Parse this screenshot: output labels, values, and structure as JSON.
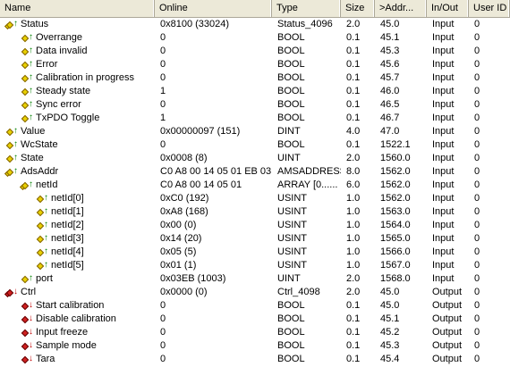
{
  "columns": [
    "Name",
    "Online",
    "Type",
    "Size",
    ">Addr...",
    "In/Out",
    "User ID"
  ],
  "rows": [
    {
      "level": 0,
      "kind": "in",
      "group": true,
      "name": "Status",
      "online": "0x8100 (33024)",
      "type": "Status_4096",
      "size": "2.0",
      "addr": "45.0",
      "io": "Input",
      "uid": "0"
    },
    {
      "level": 1,
      "kind": "in",
      "name": "Overrange",
      "online": "0",
      "type": "BOOL",
      "size": "0.1",
      "addr": "45.1",
      "io": "Input",
      "uid": "0"
    },
    {
      "level": 1,
      "kind": "in",
      "name": "Data invalid",
      "online": "0",
      "type": "BOOL",
      "size": "0.1",
      "addr": "45.3",
      "io": "Input",
      "uid": "0"
    },
    {
      "level": 1,
      "kind": "in",
      "name": "Error",
      "online": "0",
      "type": "BOOL",
      "size": "0.1",
      "addr": "45.6",
      "io": "Input",
      "uid": "0"
    },
    {
      "level": 1,
      "kind": "in",
      "name": "Calibration in progress",
      "online": "0",
      "type": "BOOL",
      "size": "0.1",
      "addr": "45.7",
      "io": "Input",
      "uid": "0"
    },
    {
      "level": 1,
      "kind": "in",
      "name": "Steady state",
      "online": "1",
      "type": "BOOL",
      "size": "0.1",
      "addr": "46.0",
      "io": "Input",
      "uid": "0"
    },
    {
      "level": 1,
      "kind": "in",
      "name": "Sync error",
      "online": "0",
      "type": "BOOL",
      "size": "0.1",
      "addr": "46.5",
      "io": "Input",
      "uid": "0"
    },
    {
      "level": 1,
      "kind": "in",
      "name": "TxPDO Toggle",
      "online": "1",
      "type": "BOOL",
      "size": "0.1",
      "addr": "46.7",
      "io": "Input",
      "uid": "0"
    },
    {
      "level": 0,
      "kind": "in",
      "name": "Value",
      "online": "0x00000097 (151)",
      "type": "DINT",
      "size": "4.0",
      "addr": "47.0",
      "io": "Input",
      "uid": "0"
    },
    {
      "level": 0,
      "kind": "in",
      "name": "WcState",
      "online": "0",
      "type": "BOOL",
      "size": "0.1",
      "addr": "1522.1",
      "io": "Input",
      "uid": "0"
    },
    {
      "level": 0,
      "kind": "in",
      "name": "State",
      "online": "0x0008 (8)",
      "type": "UINT",
      "size": "2.0",
      "addr": "1560.0",
      "io": "Input",
      "uid": "0"
    },
    {
      "level": 0,
      "kind": "in",
      "group": true,
      "name": "AdsAddr",
      "online": "C0 A8 00 14 05 01 EB 03",
      "type": "AMSADDRESS",
      "size": "8.0",
      "addr": "1562.0",
      "io": "Input",
      "uid": "0"
    },
    {
      "level": 1,
      "kind": "in",
      "group": true,
      "name": "netId",
      "online": "C0 A8 00 14 05 01",
      "type": "ARRAY [0......",
      "size": "6.0",
      "addr": "1562.0",
      "io": "Input",
      "uid": "0"
    },
    {
      "level": 2,
      "kind": "in",
      "name": "netId[0]",
      "online": "0xC0 (192)",
      "type": "USINT",
      "size": "1.0",
      "addr": "1562.0",
      "io": "Input",
      "uid": "0"
    },
    {
      "level": 2,
      "kind": "in",
      "name": "netId[1]",
      "online": "0xA8 (168)",
      "type": "USINT",
      "size": "1.0",
      "addr": "1563.0",
      "io": "Input",
      "uid": "0"
    },
    {
      "level": 2,
      "kind": "in",
      "name": "netId[2]",
      "online": "0x00 (0)",
      "type": "USINT",
      "size": "1.0",
      "addr": "1564.0",
      "io": "Input",
      "uid": "0"
    },
    {
      "level": 2,
      "kind": "in",
      "name": "netId[3]",
      "online": "0x14 (20)",
      "type": "USINT",
      "size": "1.0",
      "addr": "1565.0",
      "io": "Input",
      "uid": "0"
    },
    {
      "level": 2,
      "kind": "in",
      "name": "netId[4]",
      "online": "0x05 (5)",
      "type": "USINT",
      "size": "1.0",
      "addr": "1566.0",
      "io": "Input",
      "uid": "0"
    },
    {
      "level": 2,
      "kind": "in",
      "name": "netId[5]",
      "online": "0x01 (1)",
      "type": "USINT",
      "size": "1.0",
      "addr": "1567.0",
      "io": "Input",
      "uid": "0"
    },
    {
      "level": 1,
      "kind": "in",
      "name": "port",
      "online": "0x03EB (1003)",
      "type": "UINT",
      "size": "2.0",
      "addr": "1568.0",
      "io": "Input",
      "uid": "0"
    },
    {
      "level": 0,
      "kind": "out",
      "group": true,
      "name": "Ctrl",
      "online": "0x0000 (0)",
      "type": "Ctrl_4098",
      "size": "2.0",
      "addr": "45.0",
      "io": "Output",
      "uid": "0"
    },
    {
      "level": 1,
      "kind": "out",
      "name": "Start calibration",
      "online": "0",
      "type": "BOOL",
      "size": "0.1",
      "addr": "45.0",
      "io": "Output",
      "uid": "0"
    },
    {
      "level": 1,
      "kind": "out",
      "name": "Disable calibration",
      "online": "0",
      "type": "BOOL",
      "size": "0.1",
      "addr": "45.1",
      "io": "Output",
      "uid": "0"
    },
    {
      "level": 1,
      "kind": "out",
      "name": "Input freeze",
      "online": "0",
      "type": "BOOL",
      "size": "0.1",
      "addr": "45.2",
      "io": "Output",
      "uid": "0"
    },
    {
      "level": 1,
      "kind": "out",
      "name": "Sample mode",
      "online": "0",
      "type": "BOOL",
      "size": "0.1",
      "addr": "45.3",
      "io": "Output",
      "uid": "0"
    },
    {
      "level": 1,
      "kind": "out",
      "name": "Tara",
      "online": "0",
      "type": "BOOL",
      "size": "0.1",
      "addr": "45.4",
      "io": "Output",
      "uid": "0"
    }
  ]
}
